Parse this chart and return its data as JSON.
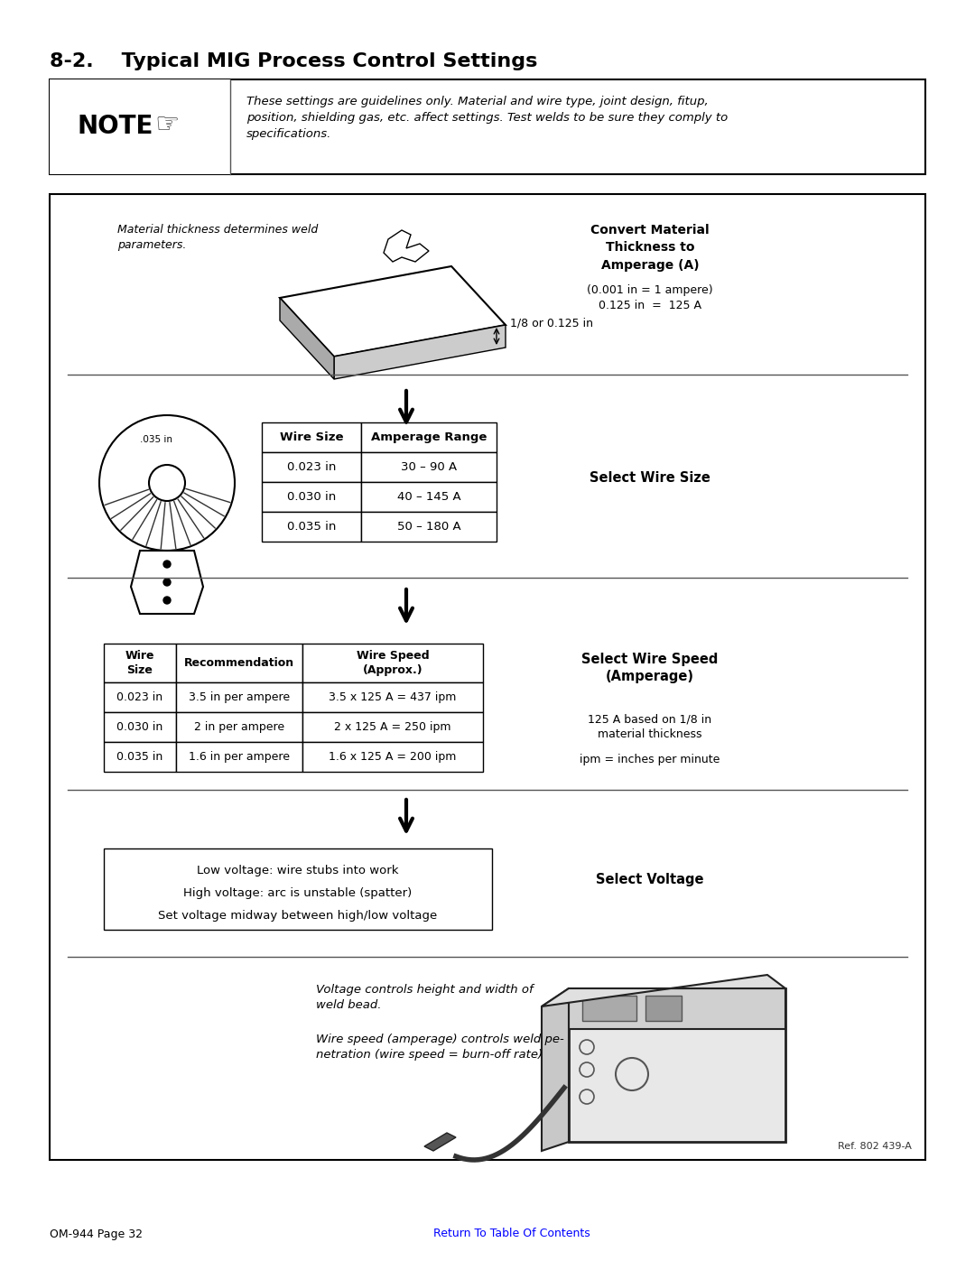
{
  "page_title": "8-2.    Typical MIG Process Control Settings",
  "note_text": "These settings are guidelines only. Material and wire type, joint design, fitup,\nposition, shielding gas, etc. affect settings. Test welds to be sure they comply to\nspecifications.",
  "material_label": "Material thickness determines weld\nparameters.",
  "thickness_label": "1/8 or 0.125 in",
  "convert_title": "Convert Material\nThickness to\nAmperage (A)",
  "convert_detail1": "(0.001 in = 1 ampere)",
  "convert_detail2": "0.125 in  =  125 A",
  "wire_table_headers": [
    "Wire Size",
    "Amperage Range"
  ],
  "wire_table_rows": [
    [
      "0.023 in",
      "30 – 90 A"
    ],
    [
      "0.030 in",
      "40 – 145 A"
    ],
    [
      "0.035 in",
      "50 – 180 A"
    ]
  ],
  "select_wire_size": "Select Wire Size",
  "wire_label": ".035 in",
  "speed_table_headers": [
    "Wire\nSize",
    "Recommendation",
    "Wire Speed\n(Approx.)"
  ],
  "speed_table_rows": [
    [
      "0.023 in",
      "3.5 in per ampere",
      "3.5 x 125 A = 437 ipm"
    ],
    [
      "0.030 in",
      "2 in per ampere",
      "2 x 125 A = 250 ipm"
    ],
    [
      "0.035 in",
      "1.6 in per ampere",
      "1.6 x 125 A = 200 ipm"
    ]
  ],
  "select_wire_speed": "Select Wire Speed\n(Amperage)",
  "speed_note1": "125 A based on 1/8 in\nmaterial thickness",
  "speed_note2": "ipm = inches per minute",
  "voltage_box_lines": [
    "Low voltage: wire stubs into work",
    "High voltage: arc is unstable (spatter)",
    "Set voltage midway between high/low voltage"
  ],
  "select_voltage": "Select Voltage",
  "voltage_controls": "Voltage controls height and width of\nweld bead.",
  "wire_speed_controls": "Wire speed (amperage) controls weld pe-\nnetration (wire speed = burn-off rate)",
  "ref_text": "Ref. 802 439-A",
  "footer_left": "OM-944 Page 32",
  "footer_center": "Return To Table Of Contents",
  "bg_color": "#ffffff",
  "border_color": "#000000",
  "text_color": "#000000",
  "blue_color": "#0000ff"
}
